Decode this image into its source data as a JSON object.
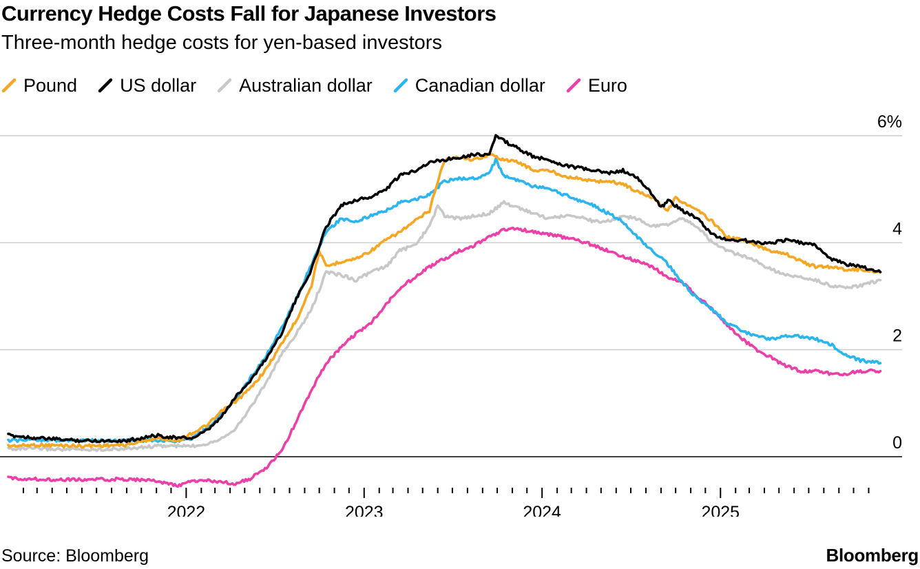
{
  "chart_data": {
    "type": "line",
    "title": "Currency Hedge Costs Fall for Japanese Investors",
    "subtitle": "Three-month hedge costs for yen-based investors",
    "xlabel": "",
    "ylabel": "",
    "ylim": [
      0,
      6
    ],
    "y_ticks": [
      {
        "value": 0,
        "label": "0"
      },
      {
        "value": 2,
        "label": "2"
      },
      {
        "value": 4,
        "label": "4"
      },
      {
        "value": 6,
        "label": "6%"
      }
    ],
    "x_range": [
      "2021-01-01",
      "2025-11-30"
    ],
    "x_ticks": [
      {
        "date": "2022-01-01",
        "label": "2022"
      },
      {
        "date": "2023-01-01",
        "label": "2023"
      },
      {
        "date": "2024-01-01",
        "label": "2024"
      },
      {
        "date": "2025-01-01",
        "label": "2025"
      }
    ],
    "grid": true,
    "legend_position": "top-left",
    "series": [
      {
        "name": "Pound",
        "color": "#f5a623",
        "points": [
          [
            "2021-01-01",
            0.2
          ],
          [
            "2021-03-01",
            0.22
          ],
          [
            "2021-06-01",
            0.2
          ],
          [
            "2021-09-01",
            0.22
          ],
          [
            "2021-11-01",
            0.35
          ],
          [
            "2021-12-15",
            0.3
          ],
          [
            "2022-01-15",
            0.45
          ],
          [
            "2022-02-15",
            0.6
          ],
          [
            "2022-03-15",
            0.85
          ],
          [
            "2022-04-15",
            1.05
          ],
          [
            "2022-05-15",
            1.3
          ],
          [
            "2022-06-15",
            1.65
          ],
          [
            "2022-07-15",
            2.1
          ],
          [
            "2022-08-15",
            2.55
          ],
          [
            "2022-09-15",
            3.2
          ],
          [
            "2022-10-01",
            3.85
          ],
          [
            "2022-10-15",
            3.55
          ],
          [
            "2022-11-15",
            3.65
          ],
          [
            "2022-12-15",
            3.7
          ],
          [
            "2023-01-15",
            3.85
          ],
          [
            "2023-02-15",
            4.05
          ],
          [
            "2023-03-15",
            4.2
          ],
          [
            "2023-04-15",
            4.4
          ],
          [
            "2023-05-15",
            4.6
          ],
          [
            "2023-06-01",
            5.15
          ],
          [
            "2023-06-15",
            5.55
          ],
          [
            "2023-07-15",
            5.6
          ],
          [
            "2023-08-15",
            5.55
          ],
          [
            "2023-09-15",
            5.65
          ],
          [
            "2023-10-15",
            5.55
          ],
          [
            "2023-11-15",
            5.5
          ],
          [
            "2023-12-15",
            5.35
          ],
          [
            "2024-01-15",
            5.35
          ],
          [
            "2024-02-15",
            5.25
          ],
          [
            "2024-03-15",
            5.2
          ],
          [
            "2024-04-15",
            5.15
          ],
          [
            "2024-05-15",
            5.15
          ],
          [
            "2024-06-15",
            5.1
          ],
          [
            "2024-07-15",
            4.95
          ],
          [
            "2024-08-15",
            4.85
          ],
          [
            "2024-09-15",
            4.6
          ],
          [
            "2024-10-01",
            4.85
          ],
          [
            "2024-10-15",
            4.75
          ],
          [
            "2024-11-15",
            4.6
          ],
          [
            "2024-12-15",
            4.4
          ],
          [
            "2025-01-15",
            4.1
          ],
          [
            "2025-02-15",
            4.05
          ],
          [
            "2025-03-15",
            3.95
          ],
          [
            "2025-04-15",
            3.85
          ],
          [
            "2025-05-15",
            3.8
          ],
          [
            "2025-06-15",
            3.65
          ],
          [
            "2025-07-15",
            3.55
          ],
          [
            "2025-08-15",
            3.55
          ],
          [
            "2025-09-15",
            3.5
          ],
          [
            "2025-10-15",
            3.5
          ],
          [
            "2025-11-25",
            3.45
          ]
        ]
      },
      {
        "name": "US dollar",
        "color": "#000000",
        "points": [
          [
            "2021-01-01",
            0.4
          ],
          [
            "2021-03-01",
            0.35
          ],
          [
            "2021-06-01",
            0.3
          ],
          [
            "2021-09-01",
            0.3
          ],
          [
            "2021-11-01",
            0.4
          ],
          [
            "2021-12-15",
            0.35
          ],
          [
            "2022-01-15",
            0.35
          ],
          [
            "2022-02-15",
            0.5
          ],
          [
            "2022-03-15",
            0.75
          ],
          [
            "2022-04-15",
            1.15
          ],
          [
            "2022-05-15",
            1.45
          ],
          [
            "2022-06-15",
            1.85
          ],
          [
            "2022-07-15",
            2.3
          ],
          [
            "2022-08-15",
            2.95
          ],
          [
            "2022-09-15",
            3.5
          ],
          [
            "2022-10-15",
            4.3
          ],
          [
            "2022-11-15",
            4.7
          ],
          [
            "2022-12-15",
            4.8
          ],
          [
            "2023-01-15",
            4.85
          ],
          [
            "2023-02-15",
            5.0
          ],
          [
            "2023-03-15",
            5.25
          ],
          [
            "2023-04-15",
            5.35
          ],
          [
            "2023-05-15",
            5.5
          ],
          [
            "2023-06-15",
            5.55
          ],
          [
            "2023-07-15",
            5.6
          ],
          [
            "2023-08-15",
            5.65
          ],
          [
            "2023-09-15",
            5.65
          ],
          [
            "2023-09-28",
            6.0
          ],
          [
            "2023-10-15",
            5.9
          ],
          [
            "2023-11-15",
            5.75
          ],
          [
            "2023-12-15",
            5.6
          ],
          [
            "2024-01-15",
            5.55
          ],
          [
            "2024-02-15",
            5.45
          ],
          [
            "2024-03-15",
            5.4
          ],
          [
            "2024-04-15",
            5.35
          ],
          [
            "2024-05-15",
            5.3
          ],
          [
            "2024-06-15",
            5.35
          ],
          [
            "2024-07-15",
            5.2
          ],
          [
            "2024-08-15",
            4.9
          ],
          [
            "2024-09-01",
            4.65
          ],
          [
            "2024-09-15",
            4.8
          ],
          [
            "2024-10-15",
            4.6
          ],
          [
            "2024-11-15",
            4.45
          ],
          [
            "2024-12-15",
            4.15
          ],
          [
            "2025-01-15",
            4.05
          ],
          [
            "2025-02-15",
            4.05
          ],
          [
            "2025-03-15",
            4.0
          ],
          [
            "2025-04-15",
            4.0
          ],
          [
            "2025-05-15",
            4.05
          ],
          [
            "2025-06-15",
            4.0
          ],
          [
            "2025-07-15",
            3.95
          ],
          [
            "2025-08-15",
            3.7
          ],
          [
            "2025-09-15",
            3.6
          ],
          [
            "2025-10-15",
            3.55
          ],
          [
            "2025-11-25",
            3.45
          ]
        ]
      },
      {
        "name": "Australian dollar",
        "color": "#c8c8c8",
        "points": [
          [
            "2021-01-01",
            0.15
          ],
          [
            "2021-03-01",
            0.15
          ],
          [
            "2021-06-01",
            0.13
          ],
          [
            "2021-09-01",
            0.15
          ],
          [
            "2021-11-01",
            0.2
          ],
          [
            "2021-12-15",
            0.2
          ],
          [
            "2022-01-15",
            0.2
          ],
          [
            "2022-02-15",
            0.25
          ],
          [
            "2022-03-15",
            0.35
          ],
          [
            "2022-04-15",
            0.55
          ],
          [
            "2022-05-15",
            0.95
          ],
          [
            "2022-06-15",
            1.4
          ],
          [
            "2022-07-15",
            1.9
          ],
          [
            "2022-08-15",
            2.3
          ],
          [
            "2022-09-15",
            2.75
          ],
          [
            "2022-10-15",
            3.45
          ],
          [
            "2022-11-15",
            3.4
          ],
          [
            "2022-12-15",
            3.3
          ],
          [
            "2023-01-15",
            3.45
          ],
          [
            "2023-02-15",
            3.55
          ],
          [
            "2023-03-15",
            3.85
          ],
          [
            "2023-04-15",
            3.95
          ],
          [
            "2023-05-15",
            4.3
          ],
          [
            "2023-06-01",
            4.7
          ],
          [
            "2023-06-15",
            4.5
          ],
          [
            "2023-07-15",
            4.45
          ],
          [
            "2023-08-15",
            4.5
          ],
          [
            "2023-09-15",
            4.55
          ],
          [
            "2023-10-15",
            4.75
          ],
          [
            "2023-11-15",
            4.65
          ],
          [
            "2023-12-15",
            4.55
          ],
          [
            "2024-01-15",
            4.45
          ],
          [
            "2024-02-15",
            4.5
          ],
          [
            "2024-03-15",
            4.5
          ],
          [
            "2024-04-15",
            4.4
          ],
          [
            "2024-05-15",
            4.4
          ],
          [
            "2024-06-15",
            4.5
          ],
          [
            "2024-07-15",
            4.45
          ],
          [
            "2024-08-15",
            4.3
          ],
          [
            "2024-09-15",
            4.35
          ],
          [
            "2024-10-15",
            4.45
          ],
          [
            "2024-11-15",
            4.3
          ],
          [
            "2024-12-15",
            4.0
          ],
          [
            "2025-01-15",
            3.85
          ],
          [
            "2025-02-15",
            3.75
          ],
          [
            "2025-03-15",
            3.65
          ],
          [
            "2025-04-15",
            3.5
          ],
          [
            "2025-05-15",
            3.4
          ],
          [
            "2025-06-15",
            3.35
          ],
          [
            "2025-07-15",
            3.3
          ],
          [
            "2025-08-15",
            3.2
          ],
          [
            "2025-09-15",
            3.15
          ],
          [
            "2025-10-15",
            3.2
          ],
          [
            "2025-11-25",
            3.3
          ]
        ]
      },
      {
        "name": "Canadian dollar",
        "color": "#2bb5ef",
        "points": [
          [
            "2021-01-01",
            0.3
          ],
          [
            "2021-03-01",
            0.32
          ],
          [
            "2021-06-01",
            0.3
          ],
          [
            "2021-09-01",
            0.3
          ],
          [
            "2021-11-01",
            0.3
          ],
          [
            "2021-12-15",
            0.3
          ],
          [
            "2022-01-15",
            0.35
          ],
          [
            "2022-02-15",
            0.55
          ],
          [
            "2022-03-15",
            0.8
          ],
          [
            "2022-04-15",
            1.1
          ],
          [
            "2022-05-15",
            1.5
          ],
          [
            "2022-06-15",
            1.9
          ],
          [
            "2022-07-15",
            2.4
          ],
          [
            "2022-08-15",
            2.95
          ],
          [
            "2022-09-15",
            3.6
          ],
          [
            "2022-10-15",
            4.2
          ],
          [
            "2022-11-15",
            4.45
          ],
          [
            "2022-12-15",
            4.4
          ],
          [
            "2023-01-15",
            4.5
          ],
          [
            "2023-02-15",
            4.6
          ],
          [
            "2023-03-15",
            4.75
          ],
          [
            "2023-04-15",
            4.8
          ],
          [
            "2023-05-15",
            4.9
          ],
          [
            "2023-06-15",
            5.15
          ],
          [
            "2023-07-15",
            5.2
          ],
          [
            "2023-08-15",
            5.2
          ],
          [
            "2023-09-15",
            5.3
          ],
          [
            "2023-09-28",
            5.55
          ],
          [
            "2023-10-15",
            5.25
          ],
          [
            "2023-11-15",
            5.15
          ],
          [
            "2023-12-15",
            5.05
          ],
          [
            "2024-01-15",
            5.0
          ],
          [
            "2024-02-15",
            4.9
          ],
          [
            "2024-03-15",
            4.8
          ],
          [
            "2024-04-15",
            4.7
          ],
          [
            "2024-05-15",
            4.55
          ],
          [
            "2024-06-15",
            4.4
          ],
          [
            "2024-07-15",
            4.1
          ],
          [
            "2024-08-15",
            3.85
          ],
          [
            "2024-09-15",
            3.6
          ],
          [
            "2024-10-15",
            3.25
          ],
          [
            "2024-11-15",
            2.95
          ],
          [
            "2024-12-15",
            2.75
          ],
          [
            "2025-01-15",
            2.5
          ],
          [
            "2025-02-15",
            2.35
          ],
          [
            "2025-03-15",
            2.25
          ],
          [
            "2025-04-15",
            2.2
          ],
          [
            "2025-05-15",
            2.25
          ],
          [
            "2025-06-15",
            2.25
          ],
          [
            "2025-07-15",
            2.2
          ],
          [
            "2025-08-15",
            2.1
          ],
          [
            "2025-09-15",
            1.9
          ],
          [
            "2025-10-15",
            1.8
          ],
          [
            "2025-11-25",
            1.75
          ]
        ]
      },
      {
        "name": "Euro",
        "color": "#ec3fa8",
        "points": [
          [
            "2021-01-01",
            -0.4
          ],
          [
            "2021-03-01",
            -0.42
          ],
          [
            "2021-06-01",
            -0.43
          ],
          [
            "2021-09-01",
            -0.42
          ],
          [
            "2021-11-01",
            -0.45
          ],
          [
            "2021-12-15",
            -0.55
          ],
          [
            "2022-01-15",
            -0.45
          ],
          [
            "2022-02-15",
            -0.45
          ],
          [
            "2022-03-15",
            -0.48
          ],
          [
            "2022-04-15",
            -0.5
          ],
          [
            "2022-05-15",
            -0.4
          ],
          [
            "2022-06-15",
            -0.2
          ],
          [
            "2022-07-15",
            0.1
          ],
          [
            "2022-08-15",
            0.65
          ],
          [
            "2022-09-15",
            1.25
          ],
          [
            "2022-10-15",
            1.75
          ],
          [
            "2022-11-15",
            2.05
          ],
          [
            "2022-12-15",
            2.3
          ],
          [
            "2023-01-15",
            2.5
          ],
          [
            "2023-02-15",
            2.85
          ],
          [
            "2023-03-15",
            3.15
          ],
          [
            "2023-04-15",
            3.35
          ],
          [
            "2023-05-15",
            3.55
          ],
          [
            "2023-06-15",
            3.7
          ],
          [
            "2023-07-15",
            3.85
          ],
          [
            "2023-08-15",
            3.95
          ],
          [
            "2023-09-15",
            4.1
          ],
          [
            "2023-10-15",
            4.25
          ],
          [
            "2023-11-15",
            4.25
          ],
          [
            "2023-12-15",
            4.2
          ],
          [
            "2024-01-15",
            4.15
          ],
          [
            "2024-02-15",
            4.1
          ],
          [
            "2024-03-15",
            4.05
          ],
          [
            "2024-04-15",
            3.95
          ],
          [
            "2024-05-15",
            3.85
          ],
          [
            "2024-06-15",
            3.75
          ],
          [
            "2024-07-15",
            3.65
          ],
          [
            "2024-08-15",
            3.55
          ],
          [
            "2024-09-15",
            3.35
          ],
          [
            "2024-10-15",
            3.25
          ],
          [
            "2024-11-15",
            3.0
          ],
          [
            "2024-12-15",
            2.75
          ],
          [
            "2025-01-15",
            2.45
          ],
          [
            "2025-02-15",
            2.2
          ],
          [
            "2025-03-15",
            2.0
          ],
          [
            "2025-04-15",
            1.85
          ],
          [
            "2025-05-15",
            1.7
          ],
          [
            "2025-06-15",
            1.6
          ],
          [
            "2025-07-15",
            1.6
          ],
          [
            "2025-08-15",
            1.55
          ],
          [
            "2025-09-15",
            1.55
          ],
          [
            "2025-10-15",
            1.6
          ],
          [
            "2025-11-25",
            1.6
          ]
        ]
      }
    ]
  },
  "footer": {
    "source": "Source: Bloomberg",
    "brand": "Bloomberg"
  }
}
